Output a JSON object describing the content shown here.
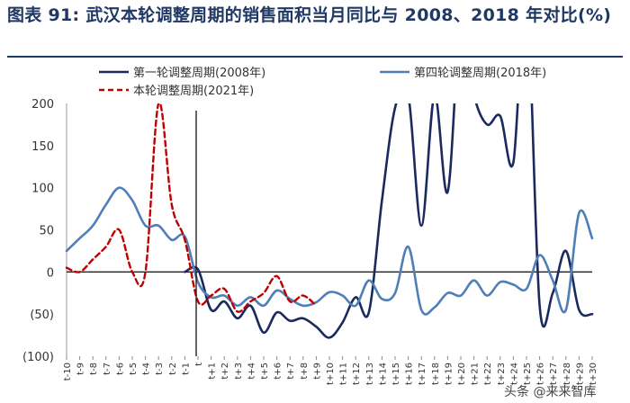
{
  "title": "图表 91: 武汉本轮调整周期的销售面积当月同比与 2008、2018 年对比(%)",
  "watermark": "头条 @来来智库",
  "chart_data": {
    "type": "line",
    "title": "图表 91: 武汉本轮调整周期的销售面积当月同比与 2008、2018 年对比(%)",
    "xlabel": "",
    "ylabel": "",
    "ylim": [
      -100,
      200
    ],
    "y_ticks": [
      {
        "value": 200,
        "label": "200"
      },
      {
        "value": 150,
        "label": "150"
      },
      {
        "value": 100,
        "label": "100"
      },
      {
        "value": 50,
        "label": "50"
      },
      {
        "value": 0,
        "label": "0"
      },
      {
        "value": -50,
        "label": "(50)"
      },
      {
        "value": -100,
        "label": "(100)"
      }
    ],
    "categories": [
      "t-10",
      "t-9",
      "t-8",
      "t-7",
      "t-6",
      "t-5",
      "t-4",
      "t-3",
      "t-2",
      "t-1",
      "t",
      "t+1",
      "t+2",
      "t+3",
      "t+4",
      "t+5",
      "t+6",
      "t+7",
      "t+8",
      "t+9",
      "t+10",
      "t+11",
      "t+12",
      "t+13",
      "t+14",
      "t+15",
      "t+16",
      "t+17",
      "t+18",
      "t+19",
      "t+20",
      "t+21",
      "t+22",
      "t+23",
      "t+24",
      "t+25",
      "t+26",
      "t+27",
      "t+28",
      "t+29",
      "t+30"
    ],
    "grid": false,
    "legend_position": "top",
    "series": [
      {
        "name": "第一轮调整周期(2008年)",
        "color": "#1a2a5e",
        "dash": false,
        "values": [
          null,
          null,
          null,
          null,
          null,
          null,
          null,
          null,
          null,
          0,
          3,
          -45,
          -35,
          -55,
          -40,
          -72,
          -48,
          -58,
          -55,
          -65,
          -78,
          -60,
          -30,
          -48,
          85,
          195,
          210,
          55,
          210,
          95,
          300,
          210,
          175,
          185,
          130,
          330,
          -40,
          -25,
          25,
          -45,
          -50
        ]
      },
      {
        "name": "第四轮调整周期(2018年)",
        "color": "#4f7fb8",
        "dash": false,
        "values": [
          25,
          40,
          55,
          80,
          100,
          85,
          55,
          55,
          38,
          42,
          -12,
          -30,
          -28,
          -40,
          -30,
          -40,
          -22,
          -32,
          -40,
          -36,
          -24,
          -28,
          -40,
          -10,
          -32,
          -25,
          30,
          -45,
          -42,
          -25,
          -28,
          -10,
          -28,
          -12,
          -15,
          -20,
          20,
          -10,
          -45,
          70,
          40
        ]
      },
      {
        "name": "本轮调整周期(2021年)",
        "color": "#c00000",
        "dash": true,
        "values": [
          5,
          0,
          15,
          30,
          50,
          0,
          0,
          200,
          80,
          38,
          -35,
          -28,
          -20,
          -47,
          -35,
          -25,
          -5,
          -35,
          -28,
          -40,
          null,
          null,
          null,
          null,
          null,
          null,
          null,
          null,
          null,
          null,
          null,
          null,
          null,
          null,
          null,
          null,
          null,
          null,
          null,
          null,
          null
        ]
      }
    ],
    "reference_line": {
      "x": "t",
      "label": ""
    }
  }
}
